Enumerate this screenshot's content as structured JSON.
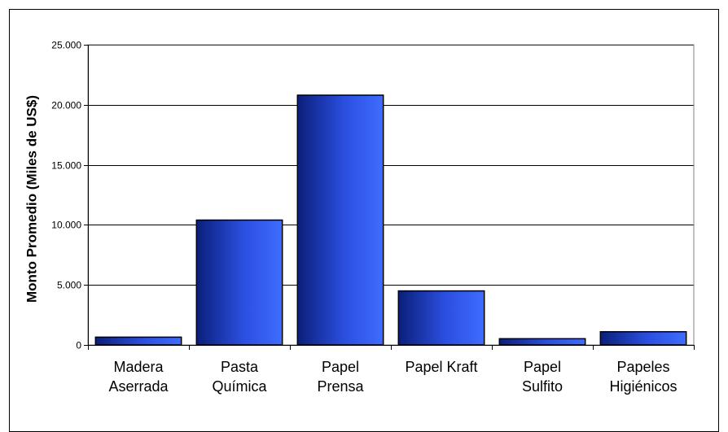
{
  "chart_data": {
    "type": "bar",
    "title": "",
    "xlabel": "",
    "ylabel": "Monto Promedio (Miles de US$)",
    "categories": [
      [
        "Madera",
        "Aserrada"
      ],
      [
        "Pasta",
        "Química"
      ],
      [
        "Papel",
        "Prensa"
      ],
      [
        "Papel Kraft"
      ],
      [
        "Papel",
        "Sulfito"
      ],
      [
        "Papeles",
        "Higiénicos"
      ]
    ],
    "values": [
      650,
      10400,
      20800,
      4500,
      520,
      1100
    ],
    "ylim": [
      0,
      25000
    ],
    "yticks": [
      0,
      5000,
      10000,
      15000,
      20000,
      25000
    ],
    "ytick_labels": [
      "0",
      "5.000",
      "10.000",
      "15.000",
      "20.000",
      "25.000"
    ],
    "grid": true,
    "legend": "none",
    "colors": {
      "bar_dark": "#0b1f7a",
      "bar_mid": "#2b4fe0",
      "bar_light": "#3f6cff",
      "grid": "#000000",
      "plot_border": "#808080"
    }
  }
}
